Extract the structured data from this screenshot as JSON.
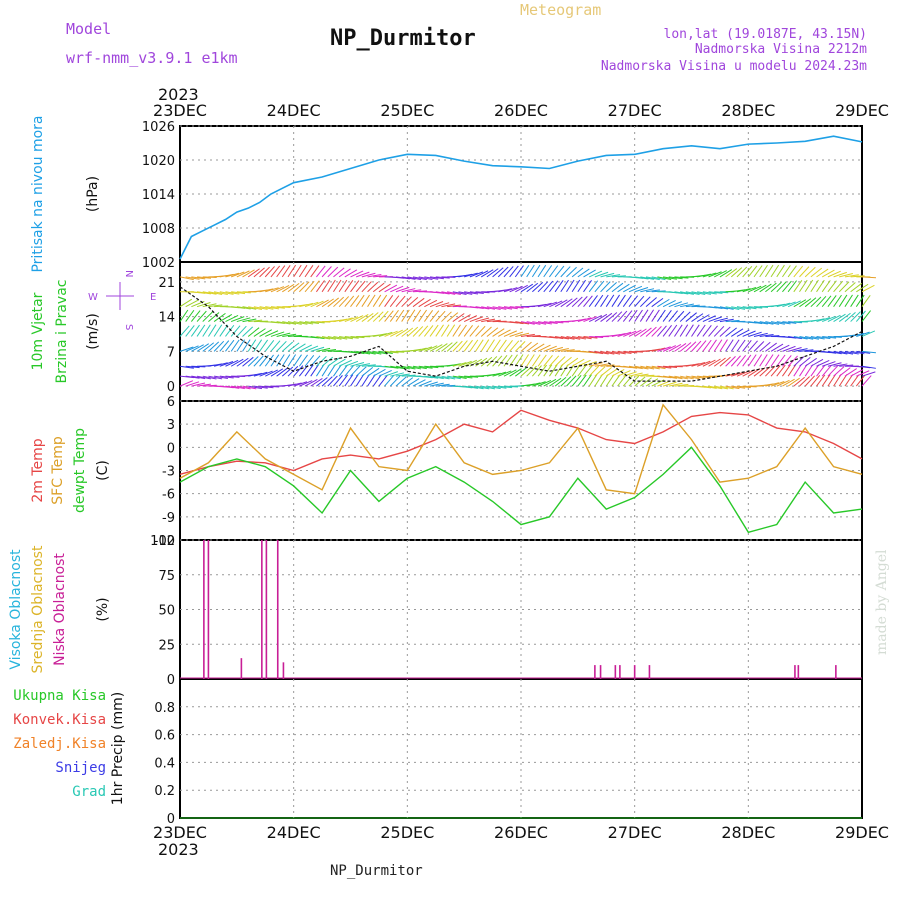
{
  "header": {
    "model_label": "Model",
    "model_name": "wrf-nmm_v3.9.1 e1km",
    "station": "NP_Durmitor",
    "product": "Meteogram",
    "coords": "lon,lat (19.0187E, 43.15N)",
    "elevation": "Nadmorska Visina 2212m",
    "model_elevation": "Nadmorska Visina u modelu 2024.23m",
    "footer_station": "NP_Durmitor",
    "credit": "made by Angel"
  },
  "colors": {
    "pressure": "#1ea0e6",
    "temp2m": "#e64646",
    "sfc": "#dca028",
    "dewpt": "#28c828",
    "cloud_high": "#28b4dc",
    "cloud_mid": "#dcb428",
    "cloud_low": "#c81e96",
    "label_purple": "#a046dc",
    "label_gold": "#e6c878"
  },
  "x_axis": {
    "year": "2023",
    "ticks": [
      "23DEC",
      "24DEC",
      "25DEC",
      "26DEC",
      "27DEC",
      "28DEC",
      "29DEC"
    ]
  },
  "chart_data": [
    {
      "type": "line",
      "ylabel_lines": [
        "Pritisak na nivou mora",
        "(hPa)"
      ],
      "ylim": [
        1002,
        1026
      ],
      "yticks": [
        1002,
        1008,
        1014,
        1020,
        1026
      ],
      "x": [
        0,
        0.1,
        0.2,
        0.3,
        0.4,
        0.5,
        0.6,
        0.7,
        0.8,
        0.9,
        1.0,
        1.25,
        1.5,
        1.75,
        2.0,
        2.25,
        2.5,
        2.75,
        3.0,
        3.25,
        3.5,
        3.75,
        4.0,
        4.25,
        4.5,
        4.75,
        5.0,
        5.25,
        5.5,
        5.75,
        6.0
      ],
      "series": [
        {
          "values": [
            1002.5,
            1006.5,
            1007.5,
            1008.5,
            1009.5,
            1010.8,
            1011.5,
            1012.5,
            1014.0,
            1015.0,
            1016.0,
            1017.0,
            1018.5,
            1020.0,
            1021.0,
            1020.8,
            1019.8,
            1019.0,
            1018.8,
            1018.5,
            1019.8,
            1020.8,
            1021.0,
            1022.0,
            1022.5,
            1022.0,
            1022.8,
            1023.0,
            1023.3,
            1024.2,
            1023.2
          ]
        }
      ]
    },
    {
      "type": "line",
      "ylabel_lines": [
        "10m Vjetar",
        "Brzina i Pravac",
        "(m/s)"
      ],
      "ylim": [
        -3,
        25
      ],
      "yticks": [
        0,
        7,
        14,
        21
      ],
      "compass": {
        "n": "N",
        "s": "S",
        "e": "E",
        "w": "W"
      },
      "x": [
        0,
        0.25,
        0.5,
        0.75,
        1.0,
        1.25,
        1.5,
        1.75,
        2.0,
        2.25,
        2.5,
        2.75,
        3.0,
        3.25,
        3.5,
        3.75,
        4.0,
        4.25,
        4.5,
        4.75,
        5.0,
        5.25,
        5.5,
        5.75,
        6.0
      ],
      "series": [
        {
          "values": [
            20,
            16,
            10,
            6,
            3,
            5,
            6,
            8,
            3,
            2,
            4,
            5,
            4,
            3,
            4,
            5,
            1,
            1,
            1,
            2,
            3,
            4,
            6,
            8,
            11
          ]
        }
      ]
    },
    {
      "type": "line",
      "ylabel_lines": [
        "2m Temp",
        "SFC Temp",
        "dewpt Temp",
        "(C)"
      ],
      "ylim": [
        -12,
        6
      ],
      "yticks": [
        -12,
        -9,
        -6,
        -3,
        0,
        3,
        6
      ],
      "x": [
        0,
        0.25,
        0.5,
        0.75,
        1.0,
        1.25,
        1.5,
        1.75,
        2.0,
        2.25,
        2.5,
        2.75,
        3.0,
        3.25,
        3.5,
        3.75,
        4.0,
        4.25,
        4.5,
        4.75,
        5.0,
        5.25,
        5.5,
        5.75,
        6.0
      ],
      "series": [
        {
          "values": [
            -3.5,
            -2.5,
            -1.8,
            -2.0,
            -3.0,
            -1.5,
            -1.0,
            -1.5,
            -0.5,
            1.0,
            3.0,
            2.0,
            4.8,
            3.5,
            2.5,
            1.0,
            0.5,
            2.0,
            4.0,
            4.5,
            4.2,
            2.5,
            2.0,
            0.5,
            -1.5
          ]
        },
        {
          "values": [
            -4.0,
            -2.0,
            2.0,
            -1.5,
            -3.5,
            -5.5,
            2.5,
            -2.5,
            -3.0,
            3.0,
            -2.0,
            -3.5,
            -3.0,
            -2.0,
            2.5,
            -5.5,
            -6.0,
            5.5,
            1.0,
            -4.5,
            -4.0,
            -2.5,
            2.5,
            -2.5,
            -3.5
          ]
        },
        {
          "values": [
            -4.5,
            -2.5,
            -1.5,
            -2.5,
            -5.0,
            -8.5,
            -3.0,
            -7.0,
            -4.0,
            -2.5,
            -4.5,
            -7.0,
            -10.0,
            -9.0,
            -4.0,
            -8.0,
            -6.5,
            -3.5,
            0.0,
            -5.0,
            -11.0,
            -10.0,
            -4.5,
            -8.5,
            -8.0
          ]
        }
      ]
    },
    {
      "type": "bar",
      "ylabel_lines": [
        "Visoka Oblacnost",
        "Srednja Oblacnost",
        "Niska Oblacnost",
        "(%)"
      ],
      "ylim": [
        0,
        100
      ],
      "yticks": [
        0,
        25,
        50,
        75,
        100
      ],
      "series": [
        {
          "x": [
            0.21,
            0.25,
            0.54,
            0.72,
            0.76,
            0.86,
            0.91,
            3.65,
            3.7,
            3.83,
            3.87,
            4.0,
            4.13,
            5.41,
            5.44,
            5.77
          ],
          "values": [
            100,
            100,
            15,
            100,
            100,
            100,
            12,
            10,
            10,
            10,
            10,
            10,
            10,
            10,
            10,
            10
          ]
        }
      ]
    },
    {
      "type": "line",
      "ylabel_lines": [
        "1hr Precip (mm)"
      ],
      "legend": [
        "Ukupna Kisa",
        "Konvek.Kisa",
        "Zaledj.Kisa",
        "Snijeg",
        "Grad"
      ],
      "legend_colors": [
        "#28c828",
        "#e64646",
        "#f08228",
        "#3c3ce6",
        "#28c8b4"
      ],
      "ylim": [
        0,
        1.0
      ],
      "yticks": [
        0,
        0.2,
        0.4,
        0.6,
        0.8
      ],
      "x": [
        0,
        6
      ],
      "series": [
        {
          "values": [
            0,
            0
          ]
        }
      ]
    }
  ]
}
